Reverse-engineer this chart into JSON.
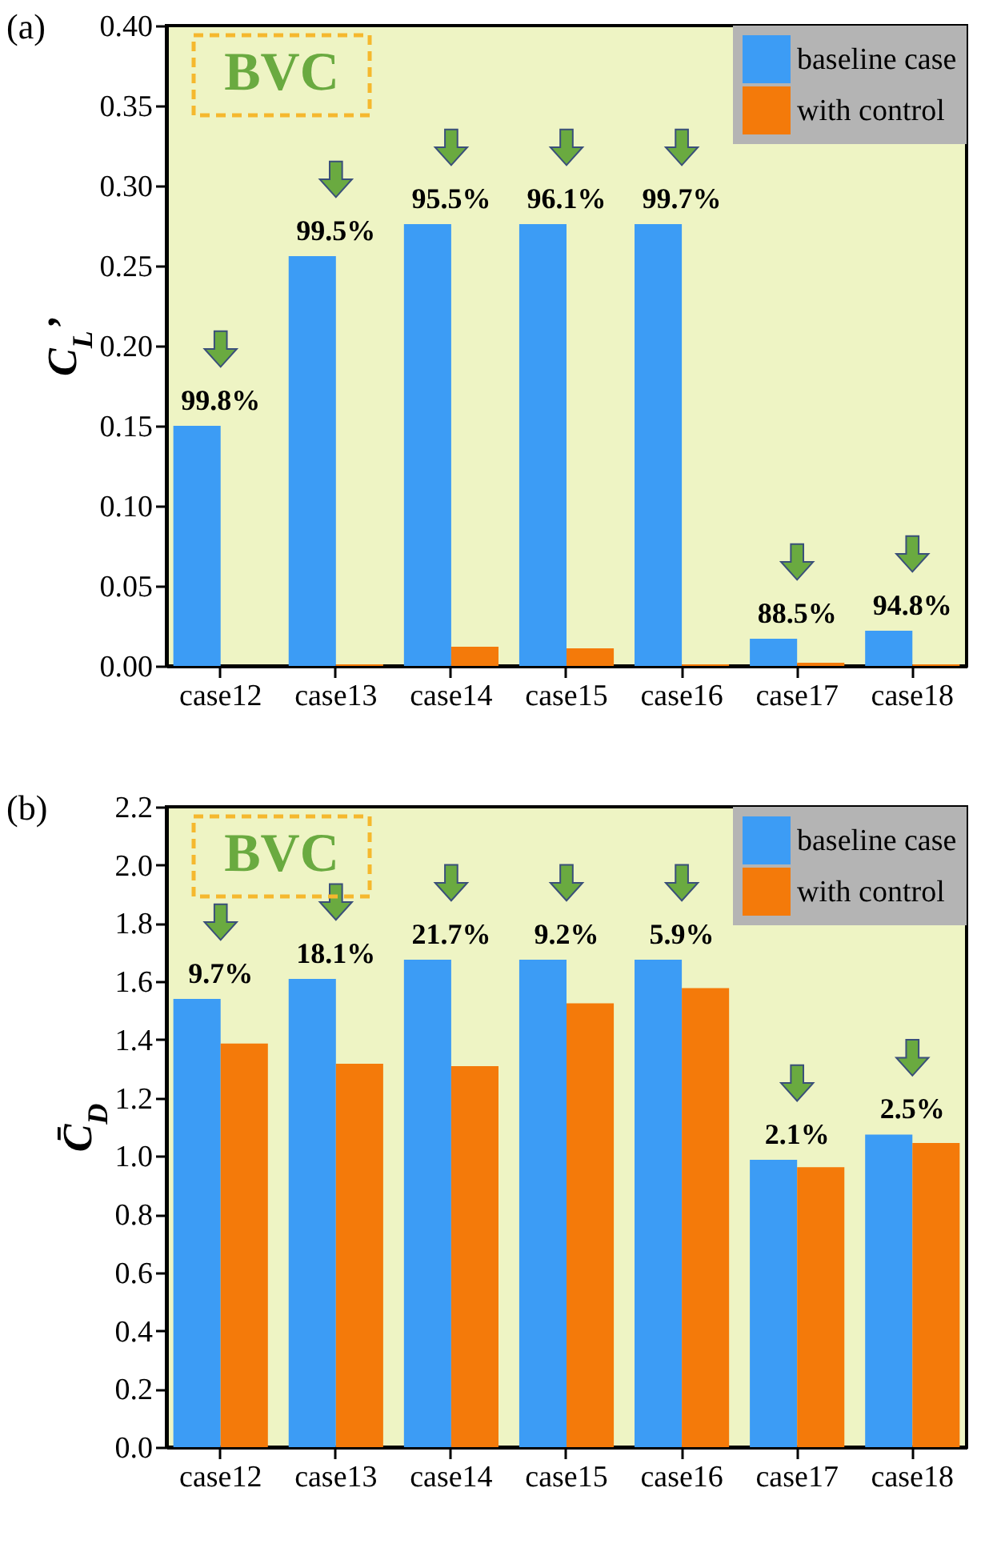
{
  "chart_data": [
    {
      "type": "bar",
      "title": "(a)",
      "ylabel": "C$_{L}$’",
      "categories": [
        "case12",
        "case13",
        "case14",
        "case15",
        "case16",
        "case17",
        "case18"
      ],
      "series": [
        {
          "name": "baseline case",
          "color": "#3c9cf5",
          "values": [
            0.15,
            0.256,
            0.276,
            0.276,
            0.276,
            0.017,
            0.022
          ]
        },
        {
          "name": "with control",
          "color": "#f47a0a",
          "values": [
            0.0,
            0.001,
            0.012,
            0.011,
            0.001,
            0.002,
            0.001
          ]
        }
      ],
      "ylim": [
        0,
        0.4
      ],
      "yticks": [
        {
          "value": 0,
          "label": "0.00"
        },
        0.05,
        {
          "value": 0.1,
          "label": "0.10"
        },
        0.15,
        {
          "value": 0.2,
          "label": "0.20"
        },
        0.25,
        {
          "value": 0.3,
          "label": "0.30"
        },
        0.35,
        {
          "value": 0.4,
          "label": "0.40"
        }
      ],
      "legend": "top right",
      "annotations": [
        "BVC",
        {
          "text": "99.8%",
          "x": "case12",
          "y": 0.15
        },
        {
          "text": "99.5%",
          "x": "case13",
          "y": 0.256
        },
        {
          "text": "95.5%",
          "x": "case14",
          "y": 0.276
        },
        {
          "text": "96.1%",
          "x": "case15",
          "y": 0.276
        },
        {
          "text": "99.7%",
          "x": "case16",
          "y": 0.276
        },
        {
          "text": "88.5%",
          "x": "case17",
          "y": 0.017
        },
        {
          "text": "94.8%",
          "x": "case18",
          "y": 0.022
        }
      ]
    },
    {
      "type": "bar",
      "title": "(b)",
      "ylabel": "C̄$_{D}$",
      "categories": [
        "case12",
        "case13",
        "case14",
        "case15",
        "case16",
        "case17",
        "case18"
      ],
      "series": [
        {
          "name": "baseline case",
          "color": "#3c9cf5",
          "values": [
            1.54,
            1.609,
            1.675,
            1.675,
            1.675,
            0.987,
            1.074
          ]
        },
        {
          "name": "with control",
          "color": "#f47a0a",
          "values": [
            1.387,
            1.317,
            1.309,
            1.525,
            1.577,
            0.962,
            1.045
          ]
        }
      ],
      "ylim": [
        0,
        2.2
      ],
      "yticks": [
        {
          "value": 0,
          "label": "0.0"
        },
        0.2,
        0.4,
        0.6,
        0.8,
        {
          "value": 1,
          "label": "1.0"
        },
        1.2,
        1.4,
        1.6,
        1.8,
        {
          "value": 2,
          "label": "2.0"
        },
        2.2
      ],
      "legend": "top right",
      "annotations": [
        "BVC",
        {
          "text": "9.7%",
          "x": "case12",
          "y": 1.54
        },
        {
          "text": "18.1%",
          "x": "case13",
          "y": 1.609
        },
        {
          "text": "21.7%",
          "x": "case14",
          "y": 1.675
        },
        {
          "text": "9.2%",
          "x": "case15",
          "y": 1.675
        },
        {
          "text": "5.9%",
          "x": "case16",
          "y": 1.675
        },
        {
          "text": "2.1%",
          "x": "case17",
          "y": 0.987
        },
        {
          "text": "2.5%",
          "x": "case18",
          "y": 1.074
        }
      ]
    }
  ]
}
